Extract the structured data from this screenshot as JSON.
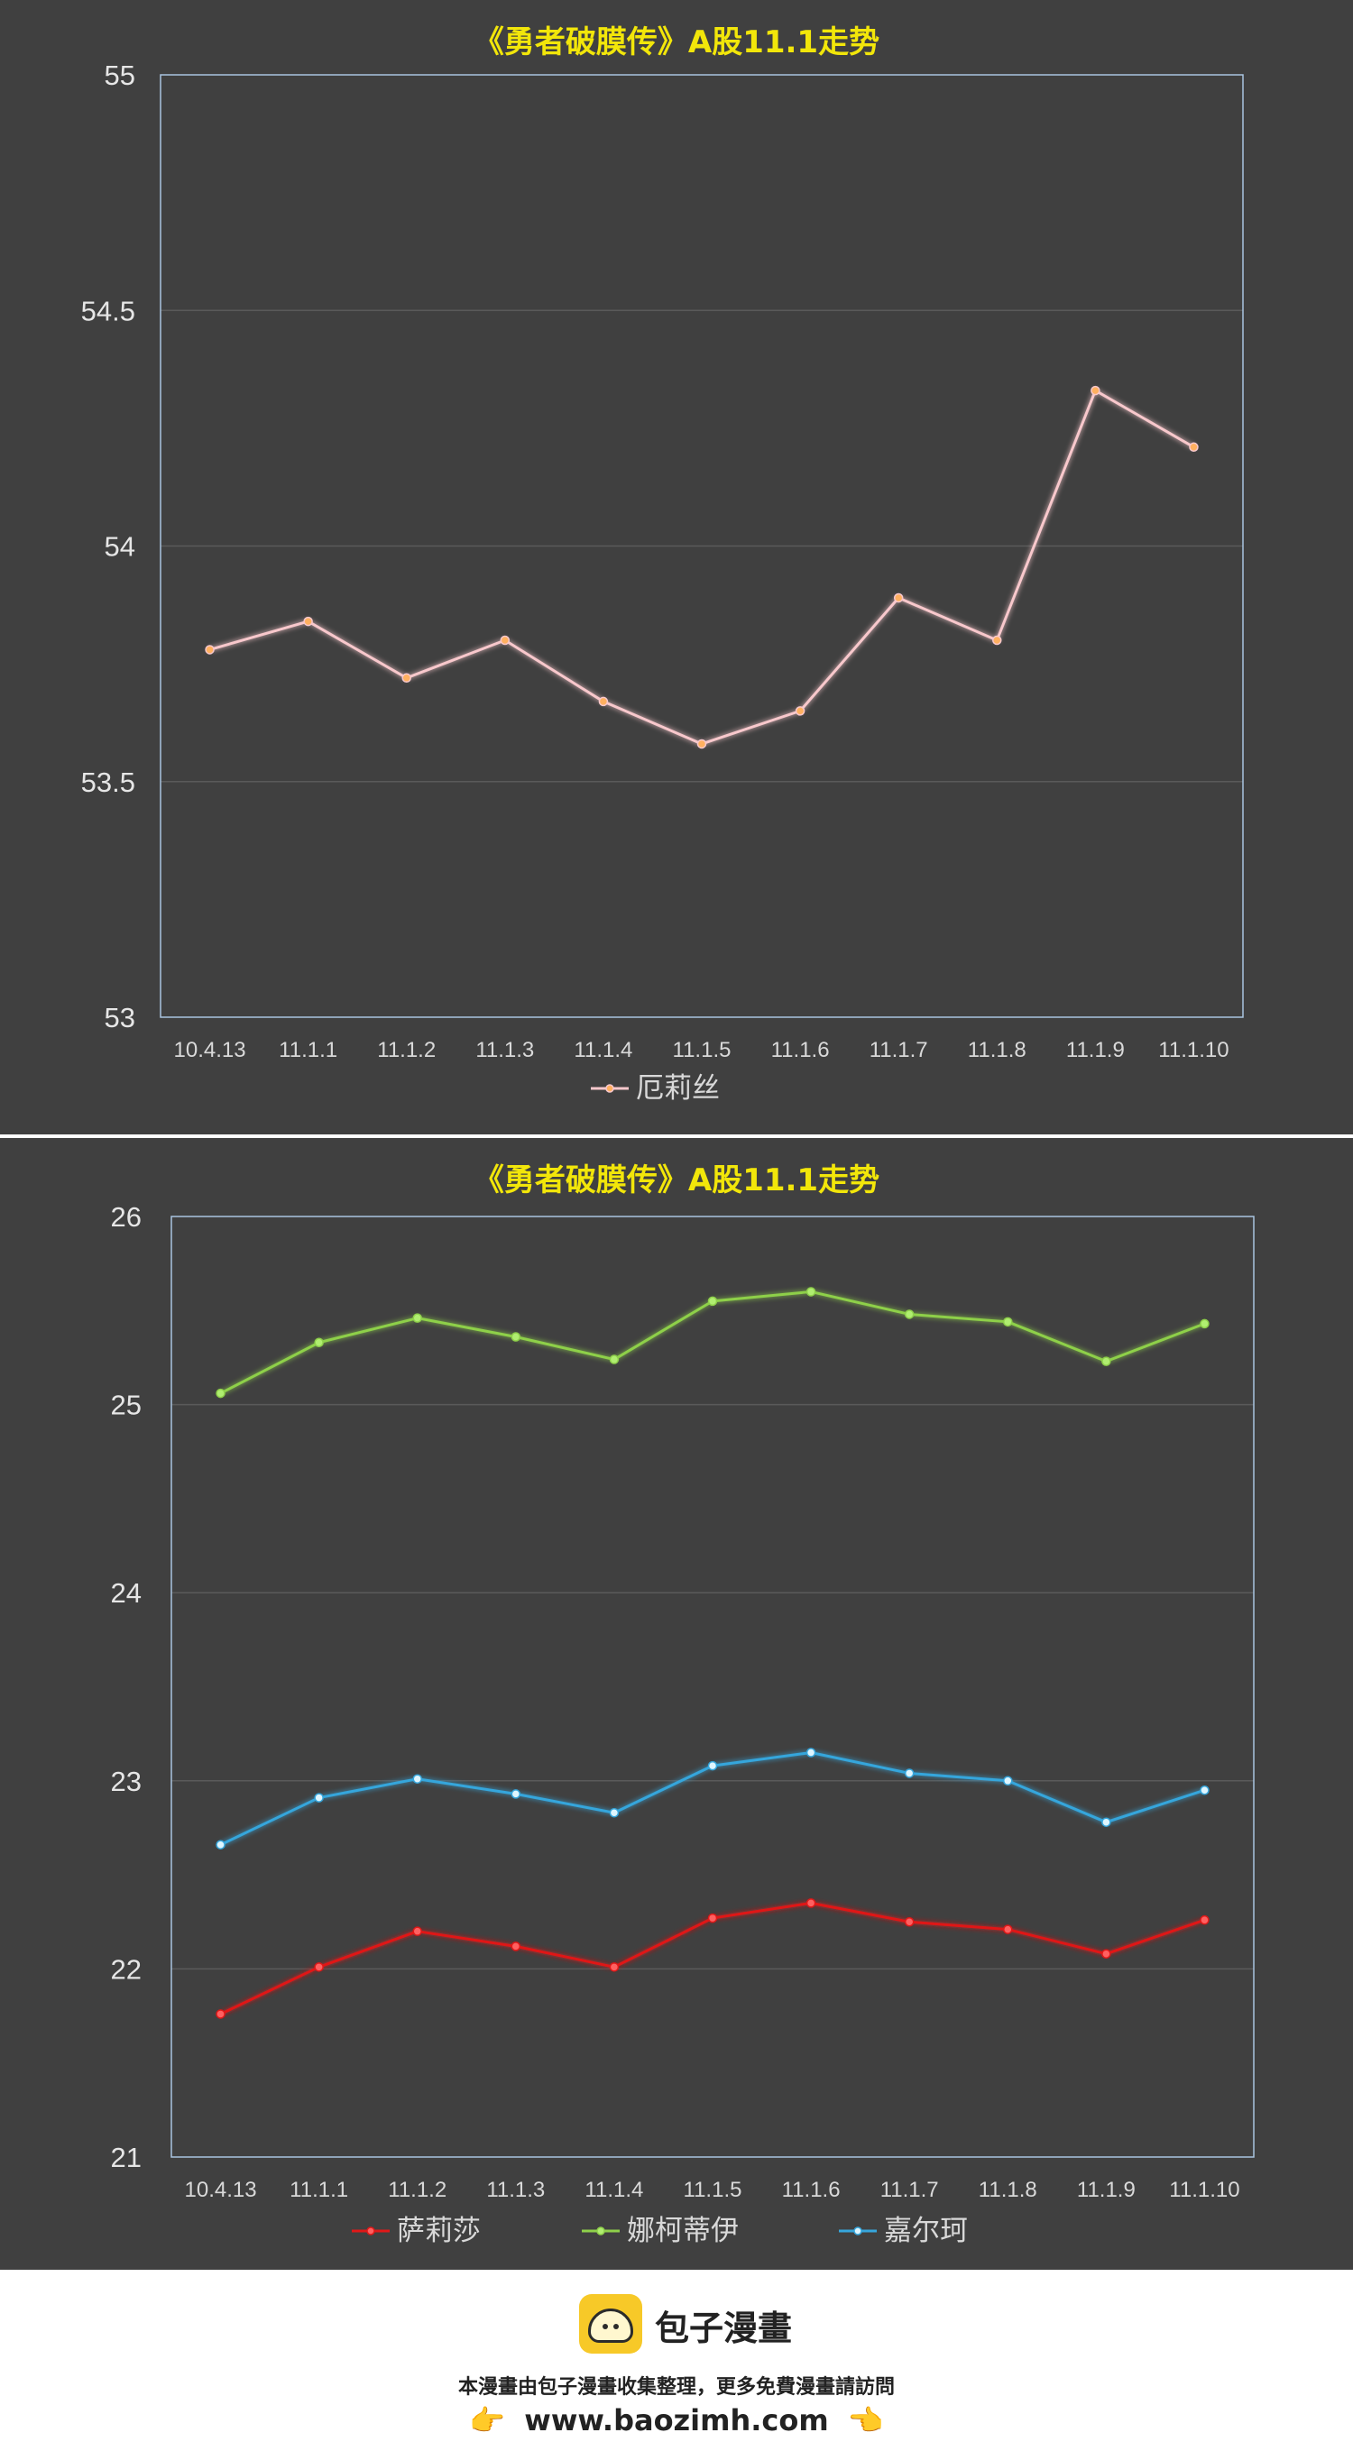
{
  "chart_data": [
    {
      "type": "line",
      "title": "《勇者破膜传》A股11.1走势",
      "categories": [
        "10.4.13",
        "11.1.1",
        "11.1.2",
        "11.1.3",
        "11.1.4",
        "11.1.5",
        "11.1.6",
        "11.1.7",
        "11.1.8",
        "11.1.9",
        "11.1.10"
      ],
      "ylim": [
        53,
        55
      ],
      "yticks": [
        "53",
        "53.5",
        "54",
        "54.5",
        "55"
      ],
      "ytick_values": [
        53,
        53.5,
        54,
        54.5,
        55
      ],
      "grid": true,
      "legend_position": "bottom",
      "series": [
        {
          "name": "厄莉丝",
          "color": "#f8c8cc",
          "marker_color": "#ffb060",
          "values": [
            53.78,
            53.84,
            53.72,
            53.8,
            53.67,
            53.58,
            53.65,
            53.89,
            53.8,
            54.33,
            54.21
          ]
        }
      ]
    },
    {
      "type": "line",
      "title": "《勇者破膜传》A股11.1走势",
      "categories": [
        "10.4.13",
        "11.1.1",
        "11.1.2",
        "11.1.3",
        "11.1.4",
        "11.1.5",
        "11.1.6",
        "11.1.7",
        "11.1.8",
        "11.1.9",
        "11.1.10"
      ],
      "ylim": [
        21,
        26
      ],
      "yticks": [
        "21",
        "22",
        "23",
        "24",
        "25",
        "26"
      ],
      "ytick_values": [
        21,
        22,
        23,
        24,
        25,
        26
      ],
      "grid": true,
      "legend_position": "bottom",
      "series": [
        {
          "name": "萨莉莎",
          "color": "#e01818",
          "marker_color": "#ff6060",
          "values": [
            21.76,
            22.01,
            22.2,
            22.12,
            22.01,
            22.27,
            22.35,
            22.25,
            22.21,
            22.08,
            22.26
          ]
        },
        {
          "name": "娜柯蒂伊",
          "color": "#8ed04a",
          "marker_color": "#b0ee70",
          "values": [
            25.06,
            25.33,
            25.46,
            25.36,
            25.24,
            25.55,
            25.6,
            25.48,
            25.44,
            25.23,
            25.43
          ]
        },
        {
          "name": "嘉尔珂",
          "color": "#36a6dc",
          "marker_color": "#dff6ff",
          "values": [
            22.66,
            22.91,
            23.01,
            22.93,
            22.83,
            23.08,
            23.15,
            23.04,
            23.0,
            22.78,
            22.95
          ]
        }
      ]
    }
  ],
  "footer": {
    "brand": "包子漫畫",
    "notice": "本漫畫由包子漫畫收集整理，更多免費漫畫請訪問",
    "url": "www.baozimh.com"
  }
}
